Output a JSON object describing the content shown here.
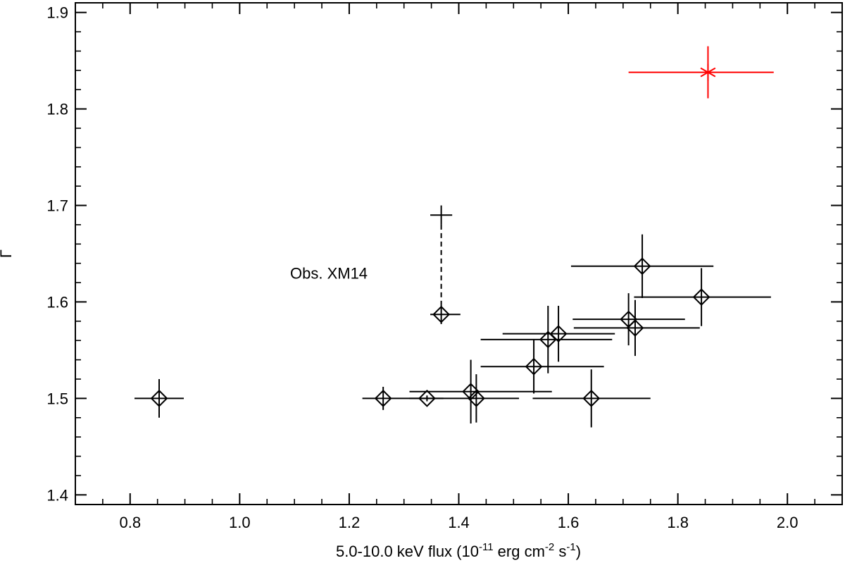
{
  "chart_data": {
    "type": "scatter",
    "xlabel": {
      "prefix": "5.0-10.0 keV flux (10",
      "exp1": "-11",
      "mid1": " erg cm",
      "exp2": "-2",
      "mid2": " s",
      "exp3": "-1",
      "suffix": ")"
    },
    "ylabel": "Γ",
    "xlim": [
      0.7,
      2.1
    ],
    "ylim": [
      1.39,
      1.91
    ],
    "x_ticks": [
      {
        "value": 0.8,
        "label": "0.8"
      },
      {
        "value": 1.0,
        "label": "1.0"
      },
      {
        "value": 1.2,
        "label": "1.2"
      },
      {
        "value": 1.4,
        "label": "1.4"
      },
      {
        "value": 1.6,
        "label": "1.6"
      },
      {
        "value": 1.8,
        "label": "1.8"
      },
      {
        "value": 2.0,
        "label": "2.0"
      }
    ],
    "y_ticks": [
      {
        "value": 1.4,
        "label": "1.4"
      },
      {
        "value": 1.5,
        "label": "1.5"
      },
      {
        "value": 1.6,
        "label": "1.6"
      },
      {
        "value": 1.7,
        "label": "1.7"
      },
      {
        "value": 1.8,
        "label": "1.8"
      },
      {
        "value": 1.9,
        "label": "1.9"
      }
    ],
    "x_minor_step": 0.05,
    "y_minor_step": 0.02,
    "grid": false,
    "colors": {
      "main": "#000000",
      "highlight": "#ff0000"
    },
    "points": [
      {
        "x": 0.853,
        "y": 1.5,
        "xerr": [
          0.045,
          0.045
        ],
        "yerr": [
          0.02,
          0.02
        ],
        "marker": "diamond"
      },
      {
        "x": 1.262,
        "y": 1.5,
        "xerr": [
          0.038,
          0.05
        ],
        "yerr": [
          0.012,
          0.012
        ],
        "marker": "diamond"
      },
      {
        "x": 1.342,
        "y": 1.5,
        "xerr": [
          0.03,
          0.03
        ],
        "yerr": [
          0.003,
          0.003
        ],
        "marker": "diamond"
      },
      {
        "x": 1.368,
        "y": 1.587,
        "xerr": [
          0.02,
          0.035
        ],
        "yerr": [
          0.01,
          0.01
        ],
        "marker": "diamond"
      },
      {
        "x": 1.422,
        "y": 1.507,
        "xerr": [
          0.112,
          0.148
        ],
        "yerr": [
          0.033,
          0.033
        ],
        "marker": "diamond"
      },
      {
        "x": 1.432,
        "y": 1.5,
        "xerr": [
          0.122,
          0.078
        ],
        "yerr": [
          0.025,
          0.025
        ],
        "marker": "diamond"
      },
      {
        "x": 1.537,
        "y": 1.533,
        "xerr": [
          0.097,
          0.128
        ],
        "yerr": [
          0.028,
          0.028
        ],
        "marker": "diamond"
      },
      {
        "x": 1.563,
        "y": 1.561,
        "xerr": [
          0.123,
          0.117
        ],
        "yerr": [
          0.035,
          0.035
        ],
        "marker": "diamond"
      },
      {
        "x": 1.582,
        "y": 1.567,
        "xerr": [
          0.102,
          0.103
        ],
        "yerr": [
          0.029,
          0.029
        ],
        "marker": "diamond"
      },
      {
        "x": 1.642,
        "y": 1.5,
        "xerr": [
          0.107,
          0.108
        ],
        "yerr": [
          0.03,
          0.03
        ],
        "marker": "diamond"
      },
      {
        "x": 1.71,
        "y": 1.582,
        "xerr": [
          0.102,
          0.103
        ],
        "yerr": [
          0.027,
          0.027
        ],
        "marker": "diamond"
      },
      {
        "x": 1.722,
        "y": 1.573,
        "xerr": [
          0.112,
          0.118
        ],
        "yerr": [
          0.029,
          0.029
        ],
        "marker": "diamond"
      },
      {
        "x": 1.735,
        "y": 1.637,
        "xerr": [
          0.13,
          0.13
        ],
        "yerr": [
          0.033,
          0.033
        ],
        "marker": "diamond"
      },
      {
        "x": 1.843,
        "y": 1.605,
        "xerr": [
          0.123,
          0.127
        ],
        "yerr": [
          0.03,
          0.03
        ],
        "marker": "diamond"
      }
    ],
    "highlight_point": {
      "x": 1.855,
      "y": 1.838,
      "xerr": [
        0.145,
        0.12
      ],
      "yerr": [
        0.027,
        0.027
      ],
      "marker": "star"
    },
    "xm14_alt_point": {
      "x": 1.368,
      "y": 1.69,
      "xerr": [
        0.02,
        0.02
      ],
      "yerr": [
        0.01,
        0.01
      ],
      "marker": "plus"
    },
    "annotation": {
      "text": "Obs. XM14",
      "x": 1.15,
      "y": 1.63
    }
  }
}
